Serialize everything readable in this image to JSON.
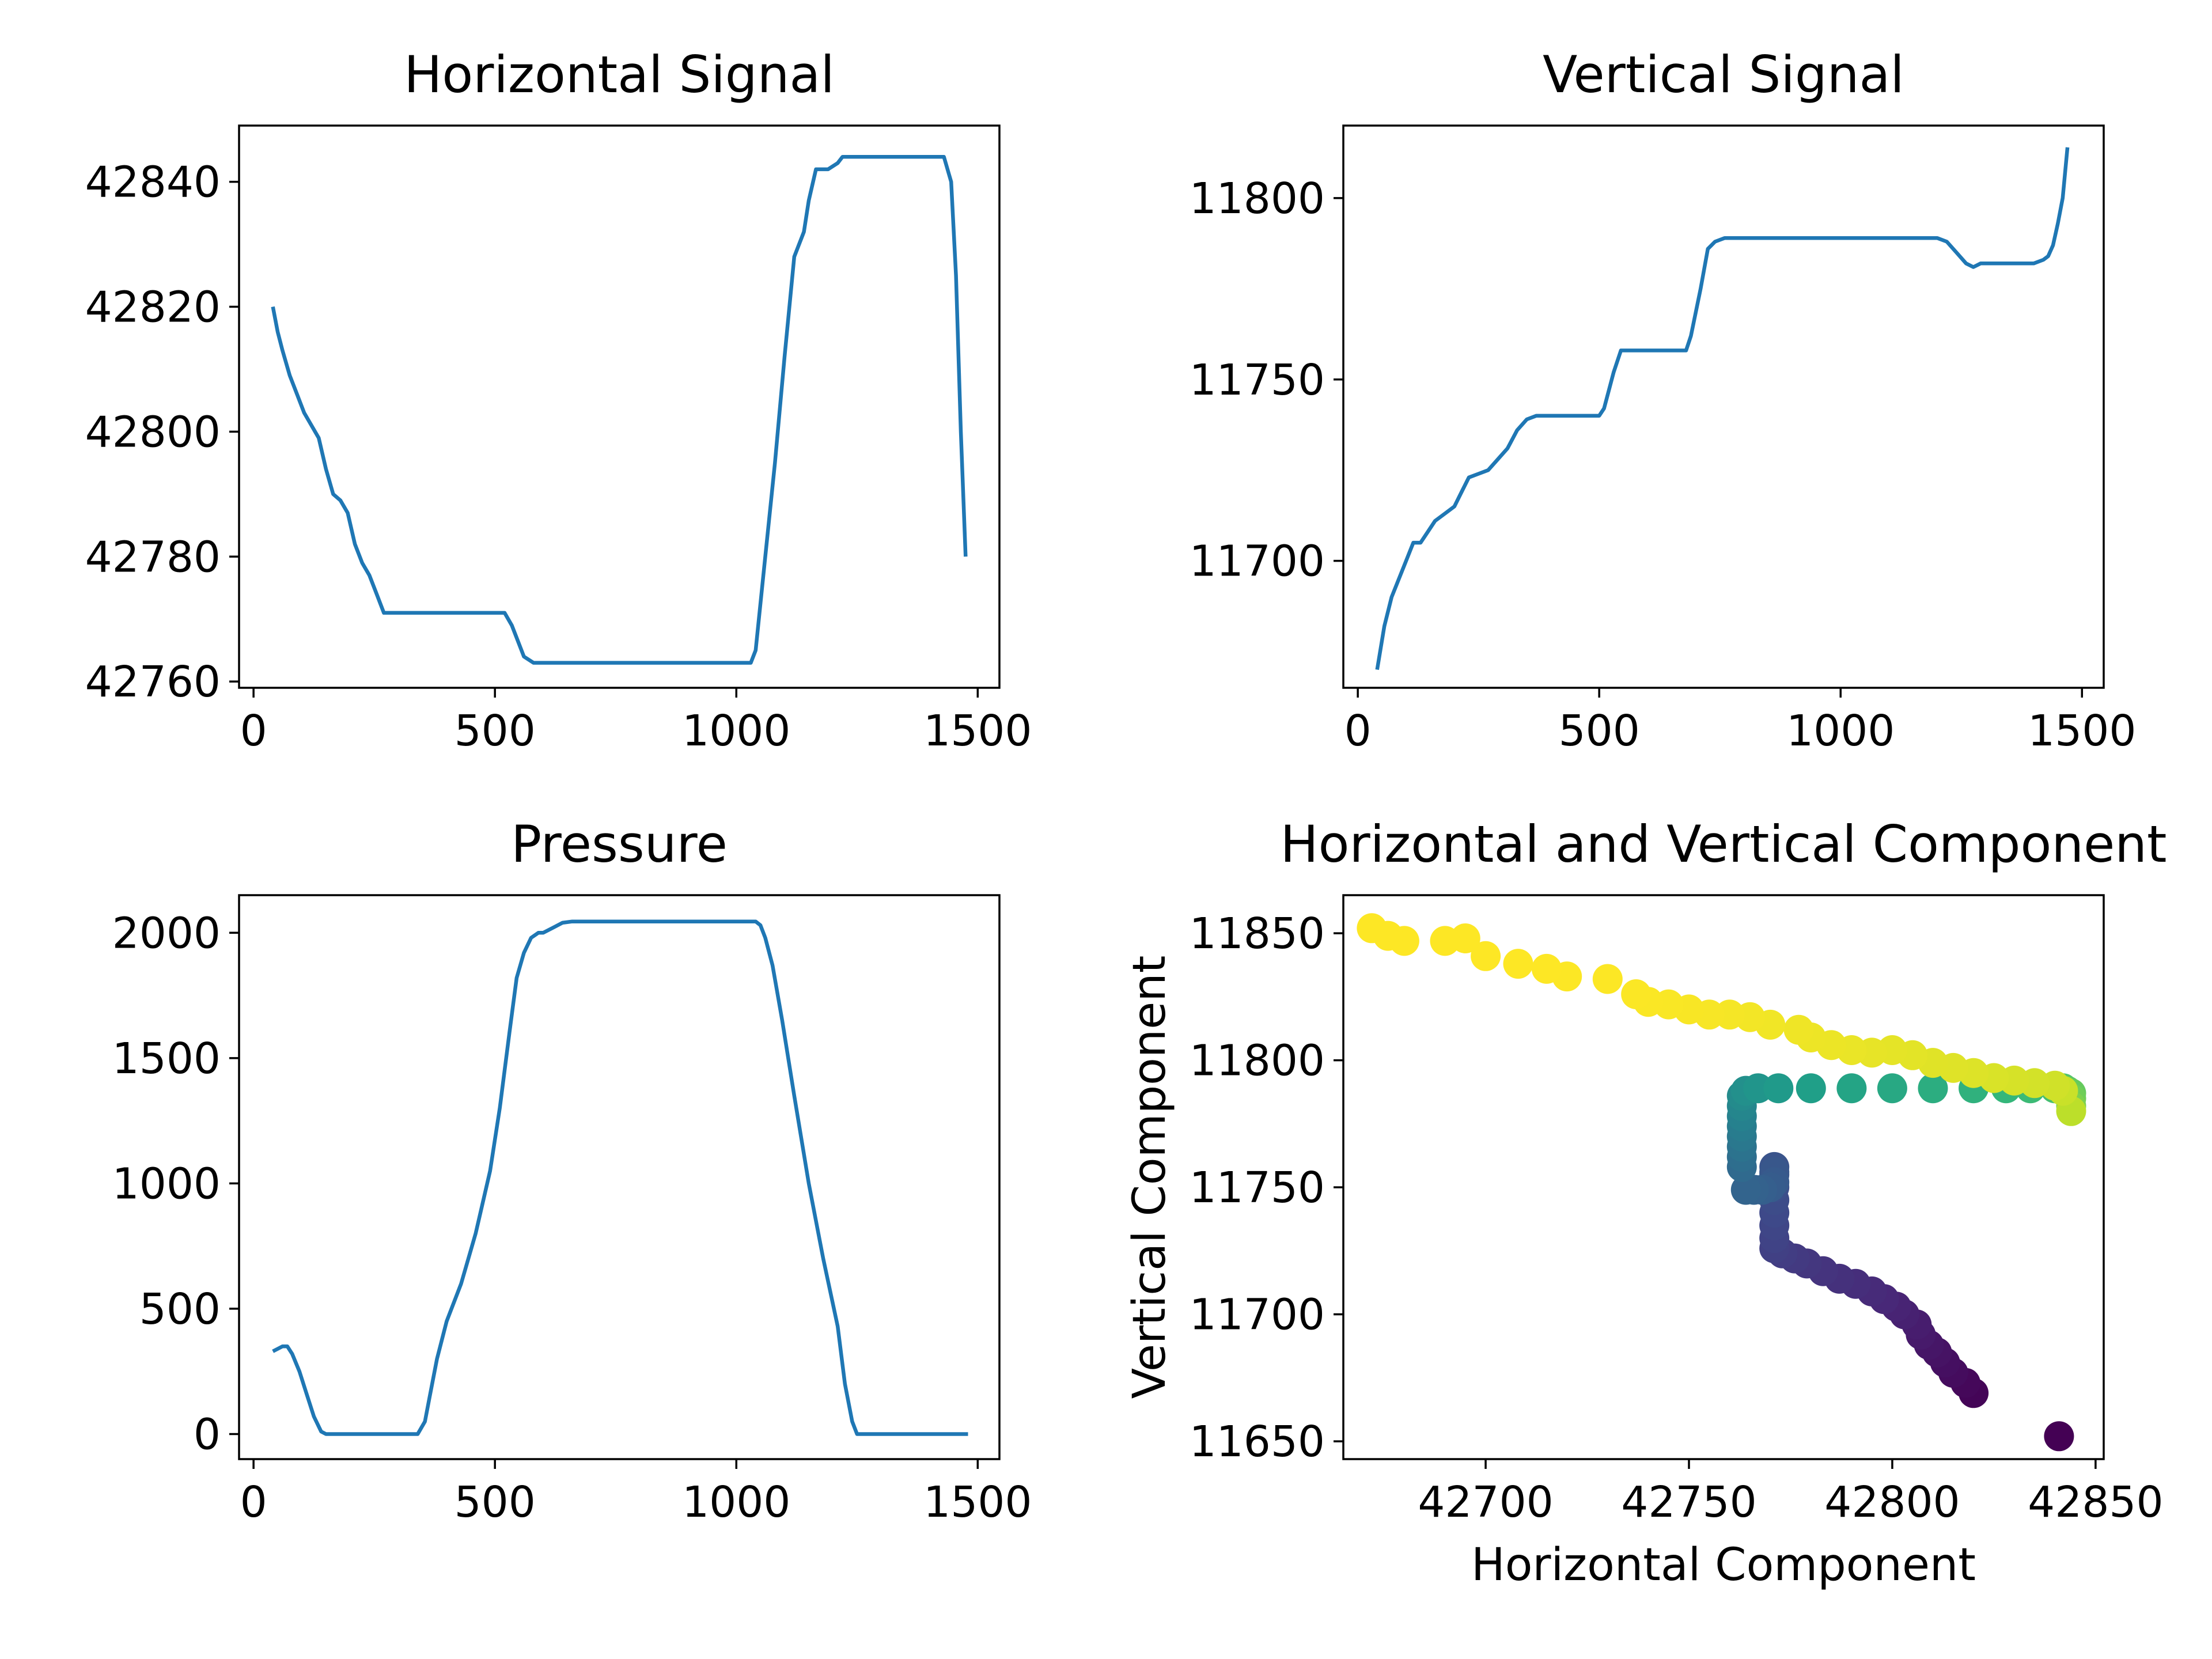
{
  "chart_data": [
    {
      "type": "line",
      "title": "Horizontal Signal",
      "xlabel": "",
      "ylabel": "",
      "xlim": [
        -30,
        1545
      ],
      "ylim": [
        42759,
        42849
      ],
      "xticks": [
        0,
        500,
        1000,
        1500
      ],
      "yticks": [
        42760,
        42780,
        42800,
        42820,
        42840
      ],
      "grid": false,
      "color": "#1f77b4",
      "series": [
        {
          "x": [
            40,
            50,
            60,
            75,
            90,
            105,
            120,
            135,
            150,
            165,
            180,
            195,
            210,
            225,
            240,
            255,
            270,
            285,
            300,
            315,
            330,
            360,
            400,
            450,
            500,
            520,
            535,
            550,
            560,
            580,
            650,
            750,
            850,
            950,
            1000,
            1030,
            1040,
            1060,
            1080,
            1100,
            1120,
            1140,
            1150,
            1165,
            1180,
            1190,
            1210,
            1220,
            1235,
            1250,
            1260,
            1300,
            1350,
            1400,
            1430,
            1445,
            1455,
            1465,
            1475
          ],
          "y": [
            42820,
            42816,
            42813,
            42809,
            42806,
            42803,
            42801,
            42799,
            42794,
            42790,
            42789,
            42787,
            42782,
            42779,
            42777,
            42774,
            42771,
            42771,
            42771,
            42771,
            42771,
            42771,
            42771,
            42771,
            42771,
            42771,
            42769,
            42766,
            42764,
            42763,
            42763,
            42763,
            42763,
            42763,
            42763,
            42763,
            42765,
            42780,
            42795,
            42812,
            42828,
            42832,
            42837,
            42842,
            42842,
            42842,
            42843,
            42844,
            42844,
            42844,
            42844,
            42844,
            42844,
            42844,
            42844,
            42840,
            42825,
            42800,
            42780
          ]
        }
      ]
    },
    {
      "type": "line",
      "title": "Vertical Signal",
      "xlabel": "",
      "ylabel": "",
      "xlim": [
        -30,
        1545
      ],
      "ylim": [
        11665,
        11820
      ],
      "xticks": [
        0,
        500,
        1000,
        1500
      ],
      "yticks": [
        11700,
        11750,
        11800
      ],
      "grid": false,
      "color": "#1f77b4",
      "series": [
        {
          "x": [
            40,
            55,
            70,
            85,
            100,
            115,
            130,
            145,
            160,
            180,
            200,
            215,
            230,
            250,
            270,
            290,
            310,
            330,
            350,
            370,
            390,
            420,
            460,
            500,
            510,
            530,
            545,
            560,
            600,
            650,
            680,
            690,
            710,
            725,
            740,
            760,
            800,
            900,
            1000,
            1100,
            1200,
            1220,
            1240,
            1260,
            1275,
            1290,
            1310,
            1350,
            1400,
            1420,
            1430,
            1440,
            1450,
            1460,
            1470
          ],
          "y": [
            11670,
            11682,
            11690,
            11695,
            11700,
            11705,
            11705,
            11708,
            11711,
            11713,
            11715,
            11719,
            11723,
            11724,
            11725,
            11728,
            11731,
            11736,
            11739,
            11740,
            11740,
            11740,
            11740,
            11740,
            11742,
            11752,
            11758,
            11758,
            11758,
            11758,
            11758,
            11762,
            11775,
            11786,
            11788,
            11789,
            11789,
            11789,
            11789,
            11789,
            11789,
            11788,
            11785,
            11782,
            11781,
            11782,
            11782,
            11782,
            11782,
            11783,
            11784,
            11787,
            11793,
            11800,
            11814
          ]
        }
      ]
    },
    {
      "type": "line",
      "title": "Pressure",
      "xlabel": "",
      "ylabel": "",
      "xlim": [
        -30,
        1545
      ],
      "ylim": [
        -100,
        2150
      ],
      "xticks": [
        0,
        500,
        1000,
        1500
      ],
      "yticks": [
        0,
        500,
        1000,
        1500,
        2000
      ],
      "grid": false,
      "color": "#1f77b4",
      "series": [
        {
          "x": [
            40,
            50,
            60,
            70,
            80,
            95,
            110,
            125,
            140,
            150,
            200,
            250,
            300,
            340,
            355,
            365,
            380,
            400,
            430,
            460,
            490,
            510,
            530,
            545,
            560,
            575,
            590,
            600,
            620,
            640,
            660,
            700,
            800,
            900,
            1000,
            1040,
            1050,
            1060,
            1075,
            1095,
            1120,
            1150,
            1180,
            1210,
            1225,
            1240,
            1250,
            1260,
            1300,
            1400,
            1480
          ],
          "y": [
            330,
            340,
            350,
            350,
            320,
            250,
            160,
            70,
            10,
            0,
            0,
            0,
            0,
            0,
            50,
            150,
            300,
            450,
            600,
            800,
            1050,
            1300,
            1600,
            1820,
            1920,
            1980,
            2000,
            2000,
            2020,
            2040,
            2045,
            2045,
            2045,
            2045,
            2045,
            2045,
            2030,
            1980,
            1870,
            1650,
            1350,
            1000,
            700,
            430,
            200,
            50,
            0,
            0,
            0,
            0,
            0
          ]
        }
      ]
    },
    {
      "type": "scatter",
      "title": "Horizontal and Vertical Component",
      "xlabel": "Horizontal Component",
      "ylabel": "Vertical Component",
      "xlim": [
        42665,
        42852
      ],
      "ylim": [
        11643,
        11865
      ],
      "xticks": [
        42700,
        42750,
        42800,
        42850
      ],
      "yticks": [
        11650,
        11700,
        11750,
        11800,
        11850
      ],
      "grid": false,
      "colormap": "viridis",
      "series": [
        {
          "x": [
            42841,
            42820,
            42818,
            42815,
            42813,
            42811,
            42809,
            42807,
            42806,
            42803,
            42801,
            42798,
            42795,
            42791,
            42787,
            42783,
            42779,
            42776,
            42773,
            42771,
            42771,
            42771,
            42771,
            42771,
            42771,
            42771,
            42771,
            42771,
            42771,
            42770,
            42768,
            42766,
            42764,
            42763,
            42763,
            42763,
            42763,
            42763,
            42763,
            42763,
            42763,
            42764,
            42767,
            42772,
            42780,
            42790,
            42800,
            42810,
            42820,
            42828,
            42834,
            42840,
            42842,
            42843,
            42844,
            42844,
            42844,
            42844,
            42842,
            42840,
            42835,
            42830,
            42825,
            42820,
            42815,
            42810,
            42805,
            42800,
            42795,
            42790,
            42785,
            42780,
            42777,
            42770,
            42765,
            42760,
            42755,
            42750,
            42745,
            42740,
            42737,
            42730,
            42720,
            42715,
            42708,
            42700,
            42695,
            42690,
            42680,
            42676,
            42672
          ],
          "y": [
            11652,
            11669,
            11673,
            11677,
            11681,
            11685,
            11688,
            11692,
            11696,
            11700,
            11703,
            11706,
            11709,
            11712,
            11714,
            11717,
            11720,
            11722,
            11724,
            11726,
            11730,
            11735,
            11740,
            11745,
            11750,
            11755,
            11758,
            11756,
            11752,
            11750,
            11749,
            11749,
            11749,
            11758,
            11762,
            11766,
            11770,
            11774,
            11778,
            11782,
            11786,
            11788,
            11789,
            11789,
            11789,
            11789,
            11789,
            11789,
            11789,
            11789,
            11789,
            11789,
            11789,
            11788,
            11787,
            11785,
            11782,
            11780,
            11788,
            11790,
            11791,
            11792,
            11793,
            11795,
            11797,
            11799,
            11802,
            11804,
            11803,
            11804,
            11806,
            11809,
            11812,
            11814,
            11817,
            11818,
            11818,
            11820,
            11822,
            11823,
            11826,
            11832,
            11833,
            11836,
            11838,
            11841,
            11848,
            11847,
            11847,
            11849,
            11852
          ],
          "t": [
            0,
            0.01,
            0.02,
            0.03,
            0.04,
            0.05,
            0.06,
            0.07,
            0.08,
            0.09,
            0.1,
            0.11,
            0.12,
            0.13,
            0.14,
            0.15,
            0.16,
            0.17,
            0.18,
            0.19,
            0.2,
            0.21,
            0.22,
            0.23,
            0.24,
            0.25,
            0.26,
            0.27,
            0.28,
            0.29,
            0.3,
            0.31,
            0.32,
            0.34,
            0.36,
            0.38,
            0.4,
            0.42,
            0.44,
            0.46,
            0.48,
            0.5,
            0.52,
            0.54,
            0.56,
            0.58,
            0.6,
            0.62,
            0.64,
            0.66,
            0.68,
            0.7,
            0.72,
            0.74,
            0.76,
            0.78,
            0.8,
            0.9,
            0.92,
            0.93,
            0.935,
            0.94,
            0.945,
            0.95,
            0.953,
            0.956,
            0.96,
            0.963,
            0.966,
            0.97,
            0.973,
            0.976,
            0.979,
            0.982,
            0.985,
            0.987,
            0.99,
            0.992,
            0.994,
            0.996,
            0.997,
            0.998,
            0.999,
            0.9995,
            1,
            1,
            1,
            1,
            1,
            1,
            1
          ]
        }
      ]
    }
  ]
}
